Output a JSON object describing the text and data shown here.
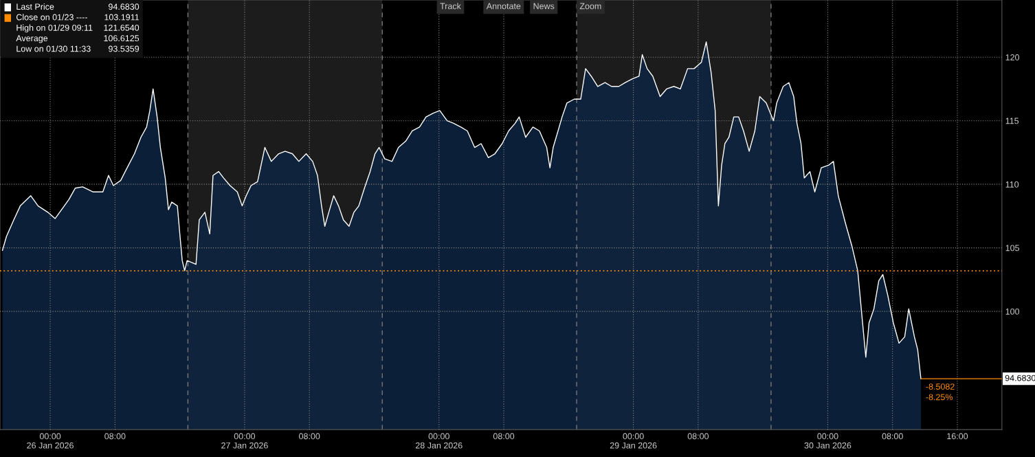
{
  "chart_data": {
    "type": "area",
    "x": [
      "2026-01-25T18:06",
      "2026-01-25T18:36",
      "2026-01-25T19:30",
      "2026-01-25T20:18",
      "2026-01-25T21:36",
      "2026-01-25T22:30",
      "2026-01-25T23:42",
      "2026-01-26T00:36",
      "2026-01-26T01:24",
      "2026-01-26T02:18",
      "2026-01-26T03:06",
      "2026-01-26T04:00",
      "2026-01-26T05:18",
      "2026-01-26T06:30",
      "2026-01-26T07:12",
      "2026-01-26T07:48",
      "2026-01-26T08:42",
      "2026-01-26T09:30",
      "2026-01-26T10:24",
      "2026-01-26T11:12",
      "2026-01-26T11:54",
      "2026-01-26T12:18",
      "2026-01-26T12:42",
      "2026-01-26T13:12",
      "2026-01-26T13:36",
      "2026-01-26T14:12",
      "2026-01-26T14:36",
      "2026-01-26T15:00",
      "2026-01-26T15:42",
      "2026-01-26T16:00",
      "2026-01-26T16:18",
      "2026-01-26T16:36",
      "2026-01-26T16:54",
      "2026-01-26T18:00",
      "2026-01-26T18:24",
      "2026-01-26T19:06",
      "2026-01-26T19:42",
      "2026-01-26T20:06",
      "2026-01-26T20:48",
      "2026-01-26T21:24",
      "2026-01-26T22:12",
      "2026-01-26T23:06",
      "2026-01-26T23:42",
      "2026-01-27T00:12",
      "2026-01-27T00:48",
      "2026-01-27T01:36",
      "2026-01-27T02:30",
      "2026-01-27T03:18",
      "2026-01-27T04:12",
      "2026-01-27T05:00",
      "2026-01-27T05:54",
      "2026-01-27T06:42",
      "2026-01-27T07:36",
      "2026-01-27T08:24",
      "2026-01-27T09:00",
      "2026-01-27T09:30",
      "2026-01-27T09:54",
      "2026-01-27T10:24",
      "2026-01-27T11:00",
      "2026-01-27T11:36",
      "2026-01-27T12:12",
      "2026-01-27T12:54",
      "2026-01-27T13:30",
      "2026-01-27T14:06",
      "2026-01-27T14:48",
      "2026-01-27T15:30",
      "2026-01-27T16:06",
      "2026-01-27T16:36",
      "2026-01-27T17:18",
      "2026-01-27T18:12",
      "2026-01-27T19:00",
      "2026-01-27T19:54",
      "2026-01-27T20:42",
      "2026-01-27T21:36",
      "2026-01-27T22:24",
      "2026-01-27T23:18",
      "2026-01-28T00:06",
      "2026-01-28T01:00",
      "2026-01-28T01:48",
      "2026-01-28T02:42",
      "2026-01-28T03:30",
      "2026-01-28T04:24",
      "2026-01-28T05:12",
      "2026-01-28T06:06",
      "2026-01-28T06:54",
      "2026-01-28T07:48",
      "2026-01-28T08:36",
      "2026-01-28T09:24",
      "2026-01-28T09:54",
      "2026-01-28T10:42",
      "2026-01-28T11:36",
      "2026-01-28T12:24",
      "2026-01-28T13:18",
      "2026-01-28T13:42",
      "2026-01-28T14:06",
      "2026-01-28T14:42",
      "2026-01-28T15:12",
      "2026-01-28T15:48",
      "2026-01-28T16:42",
      "2026-01-28T17:30",
      "2026-01-28T18:06",
      "2026-01-28T18:48",
      "2026-01-28T19:36",
      "2026-01-28T20:30",
      "2026-01-28T21:18",
      "2026-01-28T22:12",
      "2026-01-28T23:00",
      "2026-01-28T23:54",
      "2026-01-29T00:42",
      "2026-01-29T01:06",
      "2026-01-29T01:42",
      "2026-01-29T02:24",
      "2026-01-29T03:18",
      "2026-01-29T04:06",
      "2026-01-29T05:00",
      "2026-01-29T05:48",
      "2026-01-29T06:42",
      "2026-01-29T07:30",
      "2026-01-29T08:24",
      "2026-01-29T09:00",
      "2026-01-29T09:36",
      "2026-01-29T10:06",
      "2026-01-29T10:30",
      "2026-01-29T10:54",
      "2026-01-29T11:18",
      "2026-01-29T11:48",
      "2026-01-29T12:24",
      "2026-01-29T13:00",
      "2026-01-29T13:36",
      "2026-01-29T14:18",
      "2026-01-29T15:00",
      "2026-01-29T15:36",
      "2026-01-29T16:24",
      "2026-01-29T17:18",
      "2026-01-29T17:42",
      "2026-01-29T18:30",
      "2026-01-29T19:12",
      "2026-01-29T19:48",
      "2026-01-29T20:12",
      "2026-01-29T20:42",
      "2026-01-29T21:06",
      "2026-01-29T21:48",
      "2026-01-29T22:24",
      "2026-01-29T23:12",
      "2026-01-30T00:06",
      "2026-01-30T00:42",
      "2026-01-30T01:18",
      "2026-01-30T02:12",
      "2026-01-30T03:00",
      "2026-01-30T03:42",
      "2026-01-30T04:18",
      "2026-01-30T04:42",
      "2026-01-30T05:06",
      "2026-01-30T05:42",
      "2026-01-30T06:18",
      "2026-01-30T06:48",
      "2026-01-30T07:24",
      "2026-01-30T08:06",
      "2026-01-30T08:48",
      "2026-01-30T09:30",
      "2026-01-30T10:00",
      "2026-01-30T10:42",
      "2026-01-30T11:06",
      "2026-01-30T11:30"
    ],
    "series": [
      {
        "name": "Last Price",
        "color": "#0d2442",
        "values": [
          104.8,
          105.9,
          107.2,
          108.3,
          109.1,
          108.3,
          107.8,
          107.3,
          108.0,
          108.8,
          109.7,
          109.8,
          109.4,
          109.4,
          110.7,
          109.9,
          110.3,
          111.3,
          112.4,
          113.7,
          114.5,
          115.8,
          117.5,
          115.3,
          112.9,
          110.5,
          108.0,
          108.6,
          108.3,
          106.1,
          104.0,
          103.2,
          104.0,
          103.7,
          107.2,
          107.8,
          106.1,
          110.7,
          111.0,
          110.5,
          109.9,
          109.4,
          108.3,
          109.1,
          109.9,
          110.2,
          112.9,
          111.8,
          112.4,
          112.6,
          112.4,
          111.8,
          112.4,
          111.8,
          110.7,
          108.3,
          106.7,
          107.8,
          109.1,
          108.3,
          107.2,
          106.7,
          107.8,
          108.3,
          109.7,
          111.0,
          112.4,
          112.9,
          112.0,
          111.8,
          112.9,
          113.4,
          114.2,
          114.5,
          115.3,
          115.6,
          115.8,
          115.0,
          114.8,
          114.5,
          114.2,
          112.9,
          113.2,
          112.1,
          112.4,
          113.2,
          114.2,
          114.8,
          115.3,
          113.7,
          114.5,
          114.2,
          112.9,
          111.3,
          112.9,
          114.2,
          115.3,
          116.4,
          116.7,
          116.7,
          119.1,
          118.5,
          117.7,
          118.0,
          117.7,
          117.7,
          118.0,
          118.3,
          118.5,
          120.2,
          119.1,
          118.5,
          116.9,
          117.5,
          117.7,
          117.5,
          119.1,
          119.1,
          119.6,
          121.2,
          118.8,
          115.8,
          108.3,
          111.5,
          113.2,
          113.7,
          115.3,
          115.3,
          114.2,
          112.6,
          114.2,
          116.9,
          116.4,
          115.0,
          116.4,
          117.7,
          118.0,
          116.9,
          114.8,
          113.2,
          110.5,
          111.0,
          109.4,
          111.3,
          111.5,
          111.8,
          109.1,
          106.9,
          105.1,
          103.2,
          99.1,
          96.4,
          99.1,
          100.2,
          102.4,
          102.9,
          101.3,
          99.1,
          97.5,
          98.0,
          100.2,
          98.0,
          97.0,
          94.7
        ]
      }
    ],
    "xlim": [
      "2026-01-25T17:48",
      "2026-01-30T21:30"
    ],
    "xticks": [
      {
        "value": "2026-01-26T00:00",
        "label": "00:00\n26 Jan 2026"
      },
      {
        "value": "2026-01-26T08:00",
        "label": "08:00"
      },
      {
        "value": "2026-01-27T00:00",
        "label": "00:00\n27 Jan 2026"
      },
      {
        "value": "2026-01-27T08:00",
        "label": "08:00"
      },
      {
        "value": "2026-01-28T00:00",
        "label": "00:00\n28 Jan 2026"
      },
      {
        "value": "2026-01-28T08:00",
        "label": "08:00"
      },
      {
        "value": "2026-01-29T00:00",
        "label": "00:00\n29 Jan 2026"
      },
      {
        "value": "2026-01-29T08:00",
        "label": "08:00"
      },
      {
        "value": "2026-01-30T00:00",
        "label": "00:00\n30 Jan 2026"
      },
      {
        "value": "2026-01-30T08:00",
        "label": "08:00"
      },
      {
        "value": "2026-01-30T16:00",
        "label": "16:00"
      }
    ],
    "ylim": [
      90.7,
      124.5
    ],
    "yticks": [
      100,
      105,
      110,
      115,
      120
    ],
    "grid": true,
    "bands": [
      {
        "axis": "x",
        "from": "2026-01-26T17:00",
        "to": "2026-01-27T17:00",
        "color": "#1c1c1c"
      },
      {
        "axis": "x",
        "from": "2026-01-28T17:00",
        "to": "2026-01-29T17:00",
        "color": "#1c1c1c"
      }
    ],
    "ref_lines": [
      {
        "axis": "y",
        "value": 103.1911,
        "label": "Close on 01/23 ----",
        "color": "#ff8c00",
        "line_style": "dotted"
      },
      {
        "axis": "x",
        "value": "2026-01-26T17:00",
        "color": "#777777",
        "line_style": "dashed"
      },
      {
        "axis": "x",
        "value": "2026-01-27T17:00",
        "color": "#777777",
        "line_style": "dashed"
      },
      {
        "axis": "x",
        "value": "2026-01-28T17:00",
        "color": "#777777",
        "line_style": "dashed"
      },
      {
        "axis": "x",
        "value": "2026-01-29T17:00",
        "color": "#777777",
        "line_style": "dashed"
      }
    ],
    "legend": "top left",
    "annotations": [
      "94.6830",
      "103.1911",
      "High on 01/29 09:11",
      "121.6540",
      "Average",
      "106.6125",
      "Low on 01/30 11:33",
      "93.5359",
      "-8.5082",
      "-8.25%",
      {
        "text": "94.6830",
        "x": "2026-01-30T11:30",
        "y": 94.7
      },
      "Track",
      "Annotate",
      "News",
      "Zoom"
    ]
  }
}
